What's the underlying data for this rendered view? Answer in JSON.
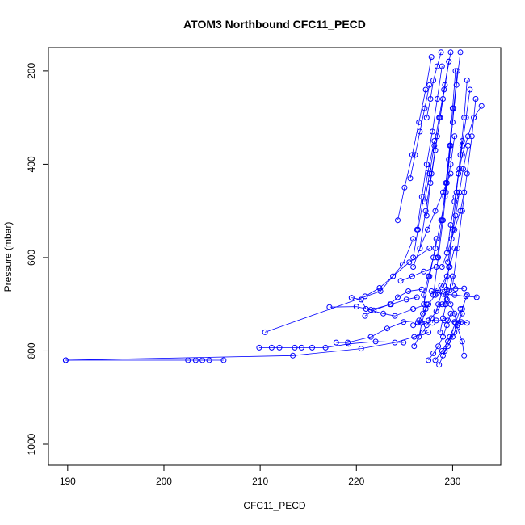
{
  "chart_data": {
    "type": "scatter",
    "title": "ATOM3 Northbound CFC11_PECD",
    "xlabel": "CFC11_PECD",
    "ylabel": "Pressure (mbar)",
    "xlim": [
      188,
      235
    ],
    "ylim": [
      1045,
      150
    ],
    "y_reversed": true,
    "x_ticks": [
      190,
      200,
      210,
      220,
      230
    ],
    "y_ticks": [
      200,
      400,
      600,
      800,
      1000
    ],
    "grid": false,
    "legend": "none",
    "color": "#0000ff",
    "point_style": "open-circle",
    "connected": true,
    "series": [
      {
        "x": [
          189.8,
          202.5,
          203.3,
          204.0,
          204.7,
          206.2
        ],
        "y": [
          820,
          820,
          820,
          820,
          820,
          820
        ]
      },
      {
        "x": [
          189.8,
          213.4,
          220.5,
          224.0,
          226.0,
          227.5
        ],
        "y": [
          820,
          810,
          795,
          782,
          770,
          760
        ]
      },
      {
        "x": [
          210.5,
          222.5,
          224.8,
          225.9
        ],
        "y": [
          760,
          672,
          615,
          560
        ]
      },
      {
        "x": [
          209.9,
          211.2,
          212.0,
          213.6,
          214.3,
          215.4,
          216.8,
          219.2,
          222.0,
          224.9
        ],
        "y": [
          793,
          793,
          793,
          793,
          793,
          793,
          793,
          785,
          780,
          782
        ]
      },
      {
        "x": [
          217.2,
          220.0,
          221.5,
          223.6,
          225.2,
          226.3
        ],
        "y": [
          706,
          705,
          712,
          700,
          690,
          685
        ]
      },
      {
        "x": [
          219.5,
          220.5,
          221.0,
          222.8,
          224.0,
          225.9,
          227.3
        ],
        "y": [
          686,
          690,
          710,
          720,
          725,
          710,
          700
        ]
      },
      {
        "x": [
          220.9,
          222.4,
          223.8,
          225.5,
          227.6
        ],
        "y": [
          683,
          665,
          640,
          610,
          580
        ]
      },
      {
        "x": [
          217.9,
          219.1,
          221.5,
          223.2,
          224.9,
          226.5
        ],
        "y": [
          782,
          782,
          770,
          752,
          738,
          735
        ]
      },
      {
        "x": [
          220.9,
          221.8,
          223.5,
          224.3,
          225.4,
          226.8
        ],
        "y": [
          725,
          713,
          700,
          685,
          672,
          668
        ]
      },
      {
        "x": [
          226.0,
          226.5,
          226.8,
          227.2,
          227.0,
          227.5,
          228.0,
          228.3
        ],
        "y": [
          790,
          770,
          740,
          710,
          680,
          640,
          600,
          560
        ]
      },
      {
        "x": [
          227.5,
          228.0,
          228.5,
          229.0,
          229.4,
          229.8
        ],
        "y": [
          820,
          805,
          790,
          770,
          745,
          720
        ]
      },
      {
        "x": [
          228.2,
          228.9,
          229.5,
          230.2,
          230.6,
          231.0
        ],
        "y": [
          820,
          800,
          780,
          760,
          740,
          720
        ]
      },
      {
        "x": [
          229.0,
          229.5,
          230.0,
          230.5,
          231.0,
          231.5
        ],
        "y": [
          810,
          790,
          770,
          745,
          710,
          680
        ]
      },
      {
        "x": [
          226.4,
          226.9,
          227.5,
          228.2,
          228.8,
          229.4
        ],
        "y": [
          740,
          720,
          700,
          680,
          660,
          640
        ]
      },
      {
        "x": [
          231.2,
          231.0,
          230.5,
          230.2,
          229.8,
          229.3
        ],
        "y": [
          810,
          780,
          750,
          720,
          700,
          680
        ]
      },
      {
        "x": [
          232.5,
          231.4,
          230.2,
          229.0,
          228.4
        ],
        "y": [
          685,
          683,
          680,
          678,
          675
        ]
      },
      {
        "x": [
          227.8,
          228.5,
          229.4,
          230.3,
          231.2
        ],
        "y": [
          672,
          670,
          668,
          667,
          666
        ]
      },
      {
        "x": [
          224.6,
          225.8,
          227.0,
          228.3
        ],
        "y": [
          650,
          640,
          630,
          620
        ]
      },
      {
        "x": [
          225.9,
          226.6,
          227.4,
          228.2,
          229.0,
          229.8
        ],
        "y": [
          620,
          580,
          540,
          500,
          460,
          420
        ]
      },
      {
        "x": [
          227.0,
          227.6,
          228.2,
          228.8,
          229.3,
          229.8,
          230.2
        ],
        "y": [
          700,
          640,
          580,
          520,
          460,
          400,
          340
        ]
      },
      {
        "x": [
          228.0,
          228.5,
          229.0,
          229.4,
          229.8,
          230.1,
          230.5
        ],
        "y": [
          680,
          600,
          520,
          440,
          360,
          280,
          200
        ]
      },
      {
        "x": [
          229.2,
          229.6,
          230.0,
          230.4,
          230.8,
          231.2,
          231.5
        ],
        "y": [
          700,
          620,
          540,
          460,
          380,
          300,
          220
        ]
      },
      {
        "x": [
          230.0,
          230.5,
          231.0,
          231.5,
          232.0,
          232.4
        ],
        "y": [
          660,
          580,
          500,
          420,
          340,
          260
        ]
      },
      {
        "x": [
          228.4,
          228.9,
          229.3,
          229.7,
          230.0,
          230.3
        ],
        "y": [
          600,
          520,
          440,
          360,
          280,
          200
        ]
      },
      {
        "x": [
          226.6,
          227.2,
          227.8,
          228.4,
          229.0,
          229.6
        ],
        "y": [
          580,
          500,
          420,
          340,
          260,
          180
        ]
      },
      {
        "x": [
          224.3,
          225.0,
          225.8,
          226.5,
          227.2,
          227.8
        ],
        "y": [
          520,
          450,
          380,
          310,
          240,
          170
        ]
      },
      {
        "x": [
          226.3,
          226.8,
          227.3,
          227.9,
          228.4,
          228.9
        ],
        "y": [
          540,
          470,
          400,
          330,
          260,
          190
        ]
      },
      {
        "x": [
          233.0,
          232.2,
          231.6,
          231.0,
          230.6
        ],
        "y": [
          275,
          300,
          340,
          380,
          420
        ]
      },
      {
        "x": [
          231.6,
          231.1,
          230.7,
          230.3,
          229.9,
          229.5
        ],
        "y": [
          360,
          410,
          460,
          510,
          560,
          610
        ]
      },
      {
        "x": [
          229.8,
          229.2,
          228.7,
          228.2,
          227.7,
          227.3
        ],
        "y": [
          160,
          230,
          300,
          370,
          440,
          510
        ]
      },
      {
        "x": [
          230.8,
          230.4,
          230.0,
          229.6,
          229.2
        ],
        "y": [
          160,
          230,
          310,
          390,
          470
        ]
      },
      {
        "x": [
          227.1,
          227.6,
          228.1,
          228.6,
          229.1,
          229.6
        ],
        "y": [
          480,
          420,
          360,
          300,
          240,
          180
        ]
      },
      {
        "x": [
          225.9,
          226.4,
          227.0,
          227.5,
          228.1
        ],
        "y": [
          600,
          540,
          470,
          410,
          350
        ]
      },
      {
        "x": [
          228.7,
          229.0,
          229.3,
          229.7,
          230.0
        ],
        "y": [
          760,
          730,
          700,
          670,
          640
        ]
      },
      {
        "x": [
          226.9,
          227.3,
          227.8,
          228.3,
          228.9,
          229.4
        ],
        "y": [
          760,
          745,
          730,
          715,
          700,
          690
        ]
      },
      {
        "x": [
          225.9,
          226.7,
          227.5,
          228.3,
          229.2
        ],
        "y": [
          745,
          740,
          735,
          735,
          735
        ]
      },
      {
        "x": [
          229.5,
          230.2,
          230.9,
          231.5
        ],
        "y": [
          735,
          738,
          738,
          740
        ]
      },
      {
        "x": [
          228.9,
          229.6,
          230.2,
          230.8,
          231.2
        ],
        "y": [
          620,
          580,
          540,
          500,
          460
        ]
      },
      {
        "x": [
          230.2,
          230.6,
          231.0,
          231.4,
          231.8
        ],
        "y": [
          480,
          420,
          360,
          300,
          240
        ]
      },
      {
        "x": [
          227.3,
          227.7,
          228.0,
          228.4,
          228.8
        ],
        "y": [
          300,
          260,
          220,
          190,
          160
        ]
      },
      {
        "x": [
          225.6,
          226.1,
          226.6,
          227.1,
          227.6
        ],
        "y": [
          430,
          380,
          330,
          280,
          230
        ]
      },
      {
        "x": [
          229.4,
          229.8,
          230.3,
          230.7,
          231.0
        ],
        "y": [
          590,
          530,
          470,
          410,
          350
        ]
      },
      {
        "x": [
          227.9,
          228.5,
          229.1,
          229.7,
          230.2
        ],
        "y": [
          740,
          700,
          660,
          620,
          580
        ]
      },
      {
        "x": [
          228.6,
          229.2,
          229.7,
          230.3,
          230.8
        ],
        "y": [
          830,
          800,
          770,
          740,
          710
        ]
      }
    ]
  }
}
